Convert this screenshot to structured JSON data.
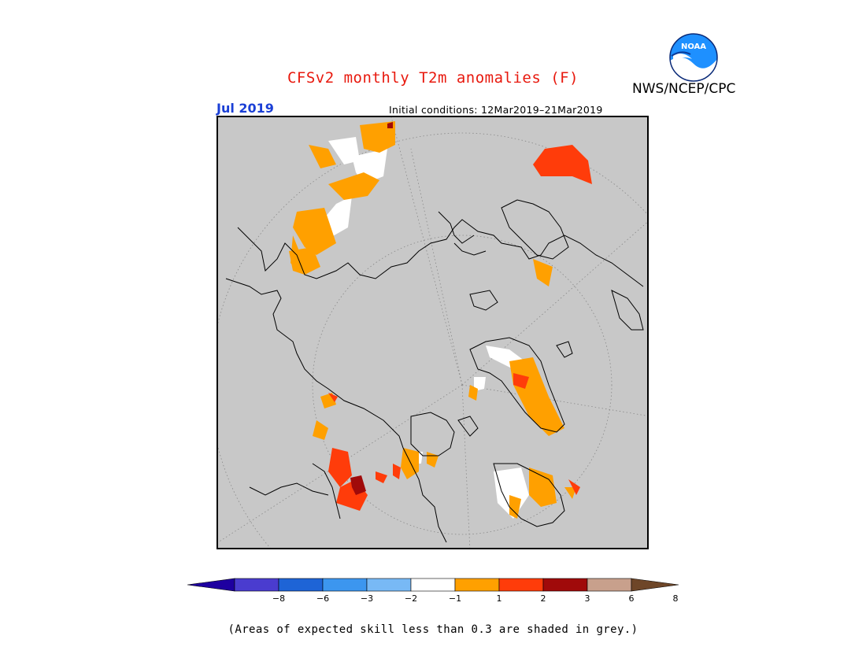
{
  "header": {
    "title": "CFSv2 monthly T2m anomalies (F)",
    "agency": "NWS/NCEP/CPC",
    "logo_text": "NOAA",
    "month": "Jul 2019",
    "initial_conditions": "Initial conditions: 12Mar2019–21Mar2019"
  },
  "colorbar": {
    "colors": [
      "#1e00a0",
      "#4a3ccf",
      "#1e64d6",
      "#3c96ef",
      "#78b9f5",
      "#ffffff",
      "#ffa000",
      "#ff3c0a",
      "#a00a0a",
      "#c8a08c",
      "#6e4628"
    ],
    "labels": [
      "−8",
      "−6",
      "−3",
      "−2",
      "−1",
      "1",
      "2",
      "3",
      "6",
      "8"
    ]
  },
  "map": {
    "background_color": "#c8c8c8",
    "projection": "north polar stereographic",
    "grid": "dotted latitude/longitude circles"
  },
  "footnote": "(Areas of expected skill less than 0.3 are shaded in grey.)"
}
